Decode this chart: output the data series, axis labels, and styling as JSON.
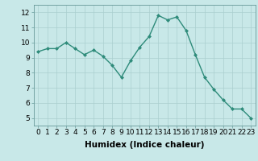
{
  "x": [
    0,
    1,
    2,
    3,
    4,
    5,
    6,
    7,
    8,
    9,
    10,
    11,
    12,
    13,
    14,
    15,
    16,
    17,
    18,
    19,
    20,
    21,
    22,
    23
  ],
  "y": [
    9.4,
    9.6,
    9.6,
    10.0,
    9.6,
    9.2,
    9.5,
    9.1,
    8.5,
    7.7,
    8.8,
    9.7,
    10.4,
    11.8,
    11.5,
    11.7,
    10.8,
    9.2,
    7.7,
    6.9,
    6.2,
    5.6,
    5.6,
    5.0
  ],
  "line_color": "#2e8b7a",
  "marker": "D",
  "marker_size": 2.0,
  "bg_color": "#c8e8e8",
  "grid_color": "#aacfcf",
  "xlabel": "Humidex (Indice chaleur)",
  "xlabel_fontsize": 7.5,
  "xlim": [
    -0.5,
    23.5
  ],
  "ylim": [
    4.5,
    12.5
  ],
  "yticks": [
    5,
    6,
    7,
    8,
    9,
    10,
    11,
    12
  ],
  "xticks": [
    0,
    1,
    2,
    3,
    4,
    5,
    6,
    7,
    8,
    9,
    10,
    11,
    12,
    13,
    14,
    15,
    16,
    17,
    18,
    19,
    20,
    21,
    22,
    23
  ],
  "tick_fontsize": 6.5,
  "linewidth": 1.0
}
